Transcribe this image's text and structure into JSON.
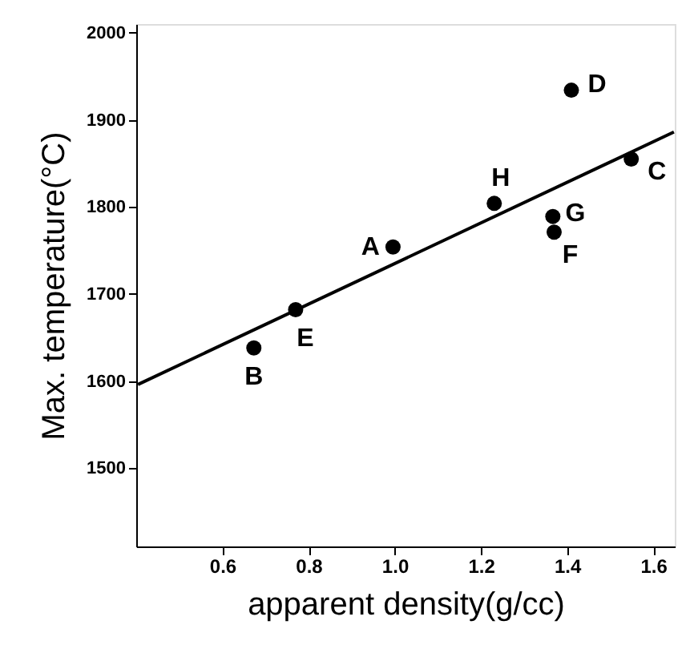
{
  "chart_data": {
    "type": "scatter",
    "xlabel": "apparent density(g/cc)",
    "ylabel": "Max. temperature(°C)",
    "xlim": [
      0.4,
      1.65
    ],
    "ylim": [
      1410,
      2010
    ],
    "xticks": [
      0.6,
      0.8,
      {
        "value": 1,
        "label": "1.0"
      },
      1.2,
      1.4,
      1.6
    ],
    "yticks": [
      1500,
      1600,
      1700,
      1800,
      1900,
      2000
    ],
    "grid": false,
    "series": [
      {
        "marker": "circle",
        "color": "#000000",
        "x": [
          0.996,
          0.673,
          1.549,
          1.41,
          0.77,
          1.37,
          1.367,
          1.231
        ],
        "values": [
          1754,
          1638,
          1855,
          1934,
          1682,
          1771,
          1789,
          1804
        ]
      },
      {
        "type": "line",
        "color": "#000000",
        "line_style": "solid",
        "x": [
          0.404,
          1.648
        ],
        "values": [
          1596,
          1886
        ]
      }
    ],
    "annotations": [
      {
        "text": "A",
        "x": 0.996,
        "y": 1754
      },
      {
        "text": "B",
        "x": 0.673,
        "y": 1638
      },
      {
        "text": "C",
        "x": 1.549,
        "y": 1855
      },
      {
        "text": "D",
        "x": 1.41,
        "y": 1934
      },
      {
        "text": "E",
        "x": 0.77,
        "y": 1682
      },
      {
        "text": "F",
        "x": 1.37,
        "y": 1771
      },
      {
        "text": "G",
        "x": 1.367,
        "y": 1789
      },
      {
        "text": "H",
        "x": 1.231,
        "y": 1804
      }
    ]
  }
}
